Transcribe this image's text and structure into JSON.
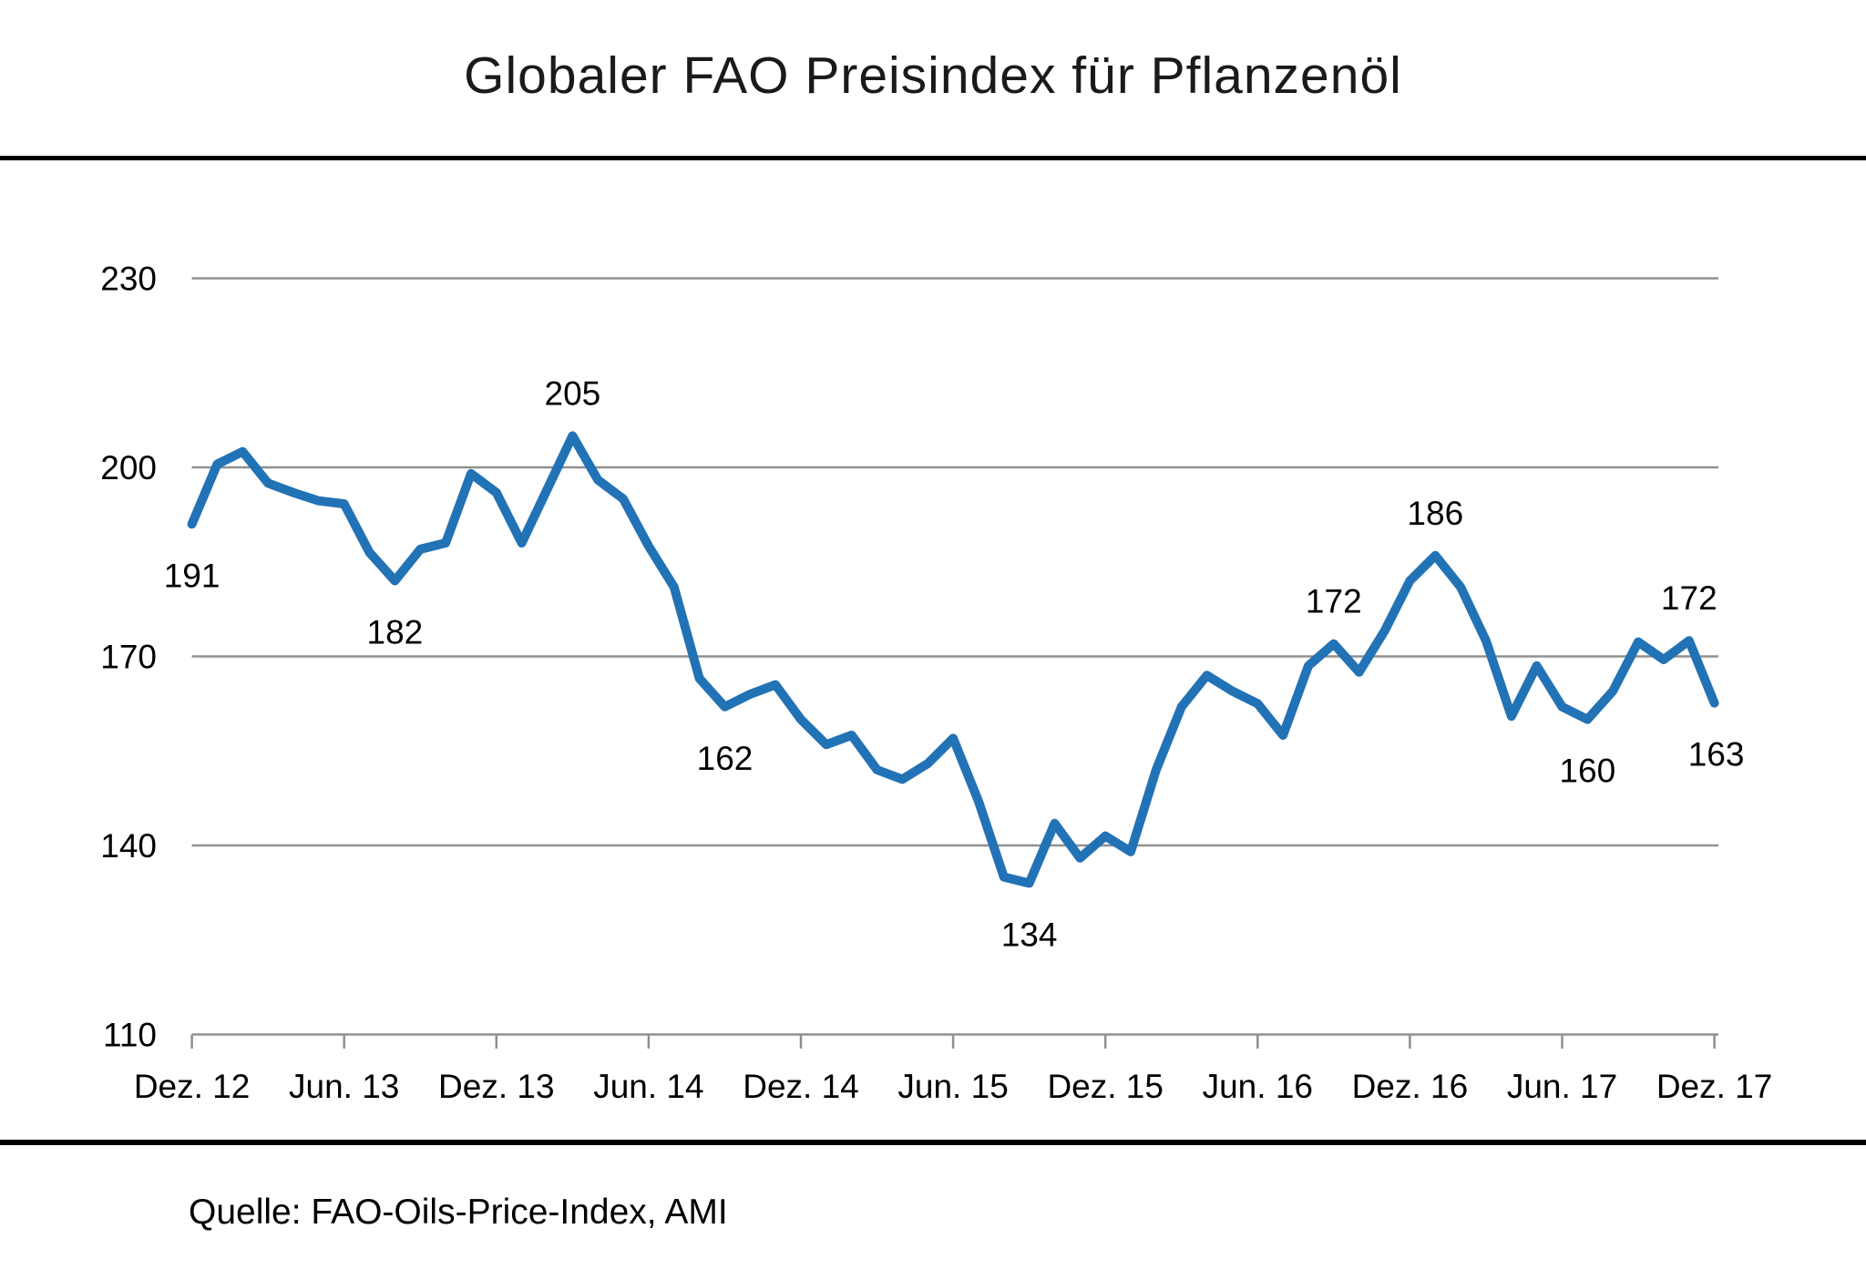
{
  "title": "Globaler FAO Preisindex für Pflanzenöl",
  "source": "Quelle: FAO-Oils-Price-Index, AMI",
  "chart_data": {
    "type": "line",
    "title": "Globaler FAO Preisindex für Pflanzenöl",
    "series_name": "FAO-Oils-Price-Index",
    "x_range": [
      "Dez. 12",
      "Dez. 17"
    ],
    "x_tick_labels": [
      "Dez. 12",
      "Jun. 13",
      "Dez. 13",
      "Jun. 14",
      "Dez. 14",
      "Jun. 15",
      "Dez. 15",
      "Jun. 16",
      "Dez. 16",
      "Jun. 17",
      "Dez. 17"
    ],
    "x_tick_interval_months": 6,
    "values": [
      191,
      200.5,
      202.5,
      197.5,
      196,
      194.7,
      194.2,
      186.5,
      182,
      187,
      188,
      199,
      196,
      188,
      196.5,
      205,
      198,
      195,
      187.5,
      181,
      166.5,
      162,
      164,
      165.5,
      160,
      156,
      157.5,
      152,
      150.5,
      153,
      157,
      147,
      135,
      134,
      143.5,
      138,
      141.5,
      139,
      152,
      162,
      167,
      164.5,
      162.5,
      157.5,
      168.5,
      172,
      167.5,
      174,
      182,
      186,
      181,
      172.5,
      160.5,
      168.5,
      162,
      160,
      164.5,
      172.3,
      169.5,
      172.5,
      162.6
    ],
    "annotations": [
      {
        "index": 0,
        "label": "191",
        "position": "below"
      },
      {
        "index": 8,
        "label": "182",
        "position": "below"
      },
      {
        "index": 15,
        "label": "205",
        "position": "above"
      },
      {
        "index": 21,
        "label": "162",
        "position": "below"
      },
      {
        "index": 33,
        "label": "134",
        "position": "below"
      },
      {
        "index": 45,
        "label": "172",
        "position": "above"
      },
      {
        "index": 49,
        "label": "186",
        "position": "above"
      },
      {
        "index": 55,
        "label": "160",
        "position": "below"
      },
      {
        "index": 59,
        "label": "172",
        "position": "above"
      },
      {
        "index": 60,
        "label": "163",
        "position": "below",
        "dx": 2
      }
    ],
    "ylim": [
      110,
      230
    ],
    "yticks": [
      110,
      140,
      170,
      200,
      230
    ],
    "grid": "horizontal",
    "legend": "none",
    "colors": {
      "line": "#2272B6",
      "grid": "#909090",
      "text": "#000000",
      "rule": "#000000"
    }
  }
}
